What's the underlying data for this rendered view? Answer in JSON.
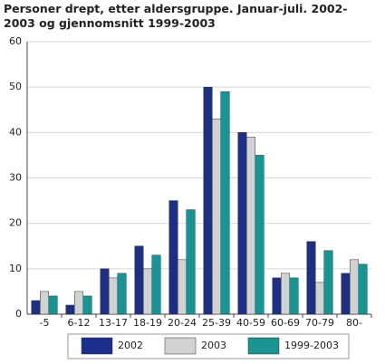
{
  "chart_data": {
    "type": "bar",
    "title": "Personer drept, etter aldersgruppe. Januar-juli. 2002-2003 og gjennomsnitt 1999-2003",
    "categories": [
      "-5",
      "6-12",
      "13-17",
      "18-19",
      "20-24",
      "25-39",
      "40-59",
      "60-69",
      "70-79",
      "80-"
    ],
    "series": [
      {
        "name": "2002",
        "color": "#1c2e8c",
        "values": [
          3,
          2,
          10,
          15,
          25,
          50,
          40,
          8,
          16,
          9
        ]
      },
      {
        "name": "2003",
        "color": "#d2d2d2",
        "values": [
          5,
          5,
          8,
          10,
          12,
          43,
          39,
          9,
          7,
          12
        ]
      },
      {
        "name": "1999-2003",
        "color": "#1b9393",
        "values": [
          4,
          4,
          9,
          13,
          23,
          49,
          35,
          8,
          14,
          11
        ]
      }
    ],
    "ylim": [
      0,
      60
    ],
    "yticks": [
      0,
      10,
      20,
      30,
      40,
      50,
      60
    ],
    "grid": true
  }
}
